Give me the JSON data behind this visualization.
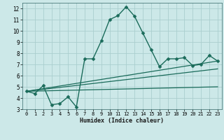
{
  "xlabel": "Humidex (Indice chaleur)",
  "background_color": "#cce8e8",
  "grid_color": "#aacece",
  "line_color": "#1a6b5a",
  "xlim": [
    -0.5,
    23.5
  ],
  "ylim": [
    3,
    12.5
  ],
  "xticks": [
    0,
    1,
    2,
    3,
    4,
    5,
    6,
    7,
    8,
    9,
    10,
    11,
    12,
    13,
    14,
    15,
    16,
    17,
    18,
    19,
    20,
    21,
    22,
    23
  ],
  "yticks": [
    3,
    4,
    5,
    6,
    7,
    8,
    9,
    10,
    11,
    12
  ],
  "series": [
    {
      "x": [
        0,
        1,
        2,
        3,
        4,
        5,
        6,
        7,
        8,
        9,
        10,
        11,
        12,
        13,
        14,
        15,
        16,
        17,
        18,
        19,
        20,
        21,
        22,
        23
      ],
      "y": [
        4.6,
        4.4,
        5.1,
        3.4,
        3.5,
        4.1,
        3.2,
        7.5,
        7.5,
        9.1,
        11.0,
        11.35,
        12.15,
        11.3,
        9.8,
        8.3,
        6.8,
        7.5,
        7.5,
        7.6,
        6.9,
        7.0,
        7.8,
        7.3
      ],
      "marker": "D",
      "markersize": 2.5,
      "linewidth": 1.0
    },
    {
      "x": [
        0,
        23
      ],
      "y": [
        4.6,
        7.3
      ],
      "marker": null,
      "markersize": 0,
      "linewidth": 0.9
    },
    {
      "x": [
        0,
        23
      ],
      "y": [
        4.6,
        6.6
      ],
      "marker": null,
      "markersize": 0,
      "linewidth": 0.9
    },
    {
      "x": [
        0,
        23
      ],
      "y": [
        4.6,
        5.0
      ],
      "marker": null,
      "markersize": 0,
      "linewidth": 0.9
    }
  ]
}
